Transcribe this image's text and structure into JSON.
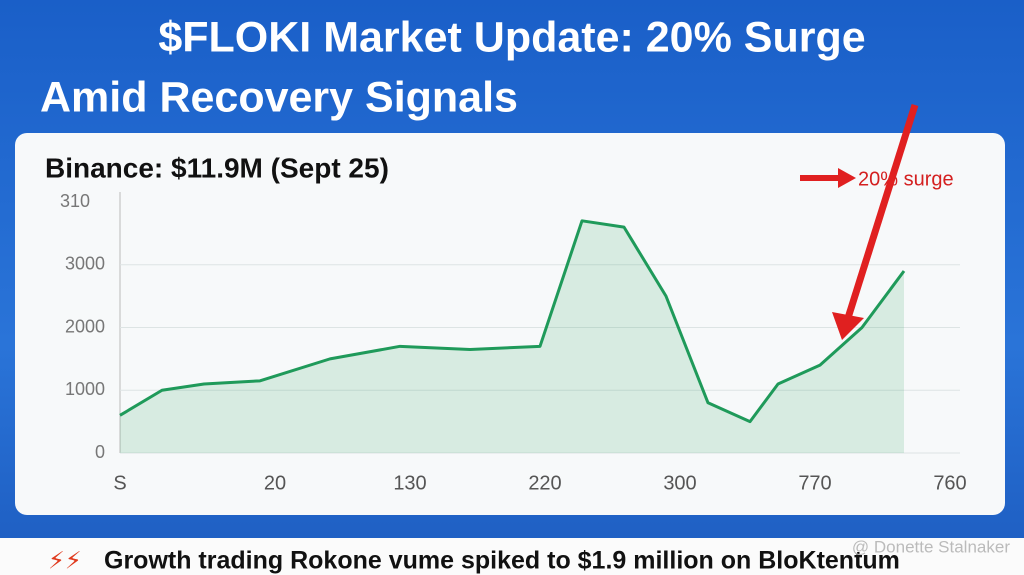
{
  "title_lines": [
    "$FLOKI Market Update: 20% Surge",
    "Amid Recovery Signals"
  ],
  "footer": "Growth trading Rokone vume spiked to $1.9 million on BloKtentum",
  "watermark": "@ Donette Stalnaker",
  "chart_data": {
    "type": "line",
    "title": "Binance: $11.9M (Sept 25)",
    "annotation": "20% surge",
    "top_label": "310",
    "x_labels": [
      "S",
      "20",
      "130",
      "220",
      "300",
      "770",
      "760"
    ],
    "x": [
      0,
      3,
      6,
      10,
      15,
      20,
      25,
      30,
      33,
      36,
      39,
      42,
      45,
      47,
      50,
      53,
      56
    ],
    "series": [
      {
        "color": "#1f9a5a",
        "values": [
          600,
          1000,
          1100,
          1150,
          1500,
          1700,
          1650,
          1700,
          3700,
          3600,
          2500,
          800,
          500,
          1100,
          1400,
          2000,
          2900
        ]
      }
    ],
    "xlim": [
      0,
      60
    ],
    "ylim": [
      0,
      4000
    ],
    "yticks": [
      0,
      1000,
      2000,
      3000
    ],
    "grid": true
  }
}
